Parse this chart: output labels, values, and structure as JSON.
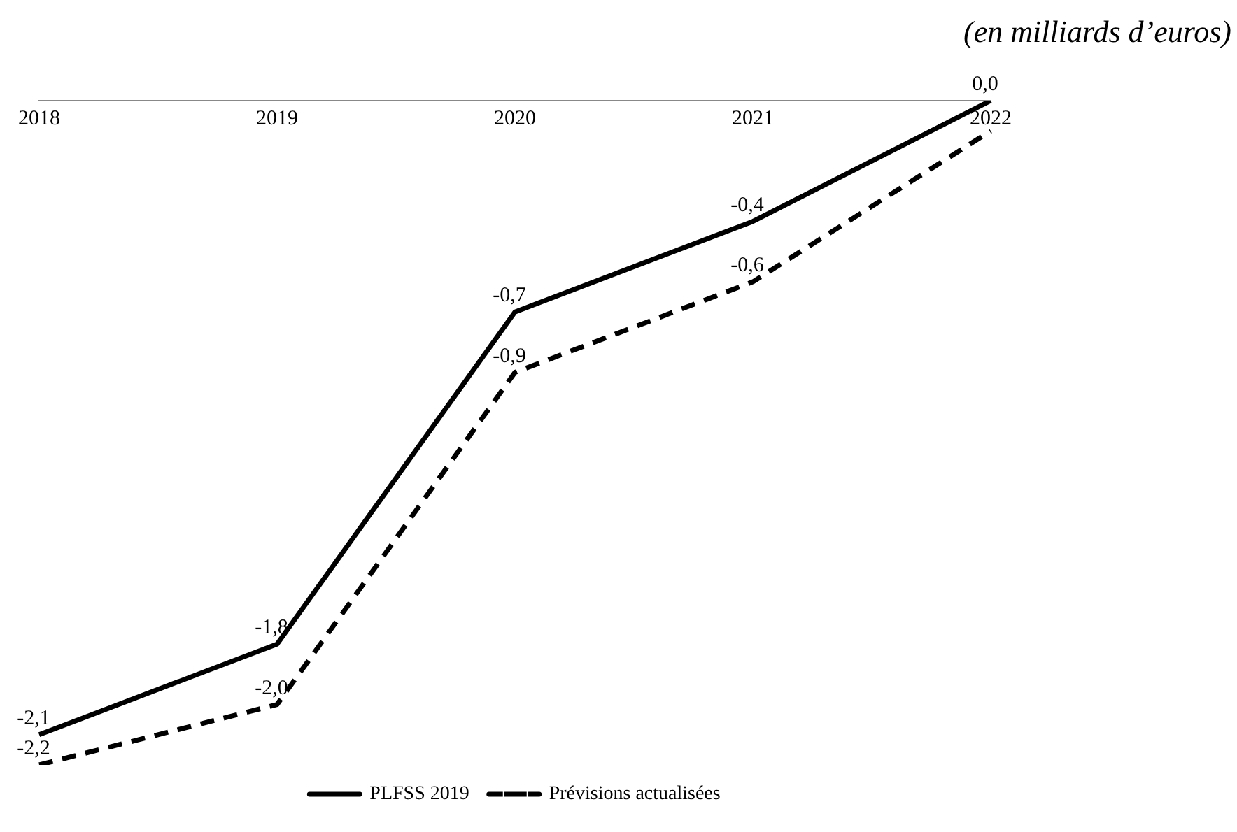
{
  "chart_data": {
    "type": "line",
    "annotations": [
      "(en milliards d’euros)"
    ],
    "categories": [
      "2018",
      "2019",
      "2020",
      "2021",
      "2022"
    ],
    "series": [
      {
        "name": "PLFSS 2019",
        "color": "#000000",
        "line_style": "solid",
        "values": [
          -2.1,
          -1.8,
          -0.7,
          -0.4,
          0.0
        ],
        "value_labels": [
          "-2,1",
          "-1,8",
          "-0,7",
          "-0,4",
          "0,0"
        ]
      },
      {
        "name": "Prévisions actualisées",
        "color": "#000000",
        "line_style": "dashed",
        "values": [
          -2.2,
          -2.0,
          -0.9,
          -0.6,
          -0.1
        ],
        "value_labels": [
          "-2,2",
          "-2,0",
          "-0,9",
          "-0,6",
          null
        ]
      }
    ],
    "legend": "bottom",
    "grid": false,
    "marker": "none"
  }
}
